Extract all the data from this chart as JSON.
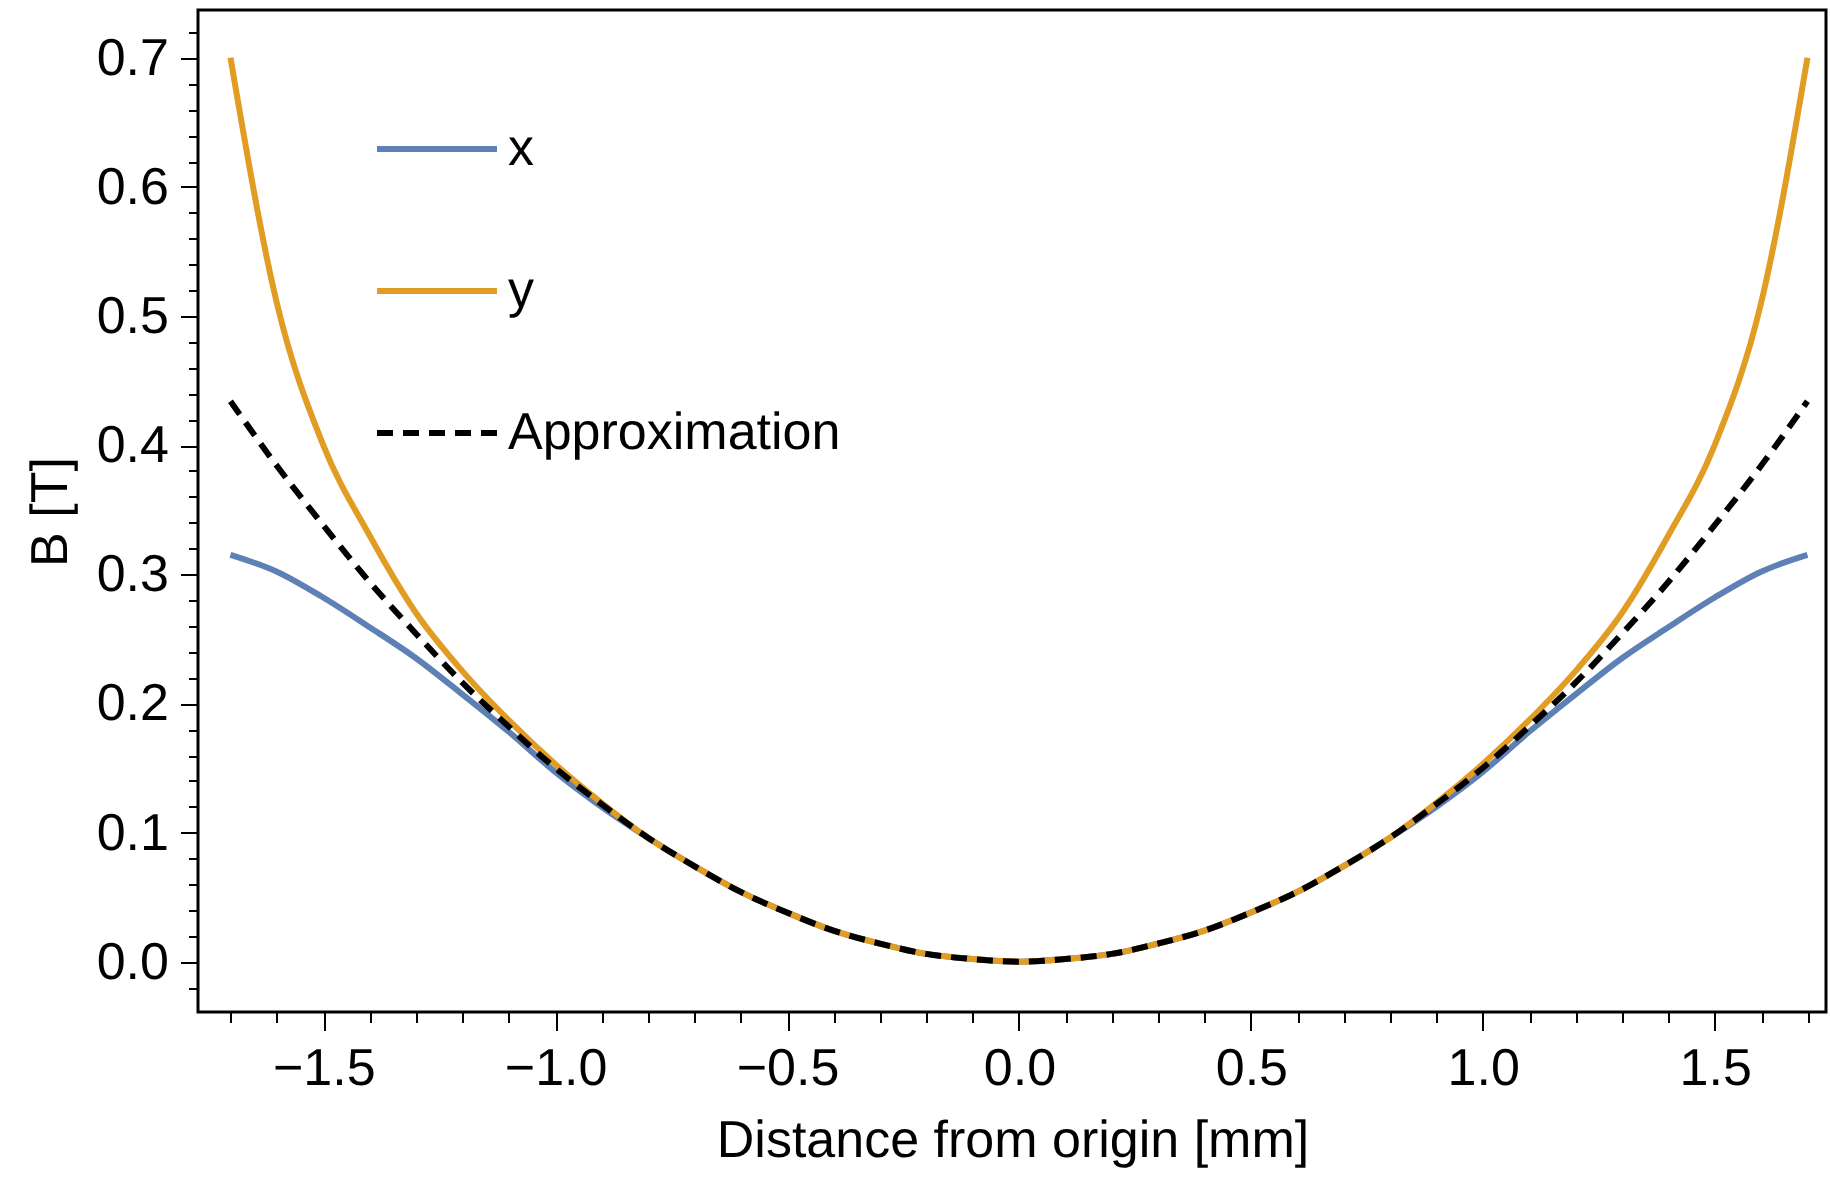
{
  "chart_data": {
    "type": "line",
    "xlabel": "Distance from origin [mm]",
    "ylabel": "B [T]",
    "legend": "top left",
    "grid": false,
    "x": [
      -1.7,
      -1.6,
      -1.5,
      -1.4,
      -1.3,
      -1.2,
      -1.1,
      -1.0,
      -0.9,
      -0.8,
      -0.7,
      -0.6,
      -0.5,
      -0.4,
      -0.3,
      -0.2,
      -0.1,
      0,
      0.1,
      0.2,
      0.3,
      0.4,
      0.5,
      0.6,
      0.7,
      0.8,
      0.9,
      1.0,
      1.1,
      1.2,
      1.3,
      1.4,
      1.5,
      1.6,
      1.7
    ],
    "series": [
      {
        "name": "x",
        "color": "#5e81b5",
        "line_style": "solid",
        "values": [
          0.315,
          0.302,
          0.282,
          0.259,
          0.235,
          0.207,
          0.178,
          0.147,
          0.12,
          0.096,
          0.074,
          0.054,
          0.038,
          0.024,
          0.014,
          0.006,
          0.002,
          0,
          0.002,
          0.006,
          0.014,
          0.024,
          0.038,
          0.054,
          0.074,
          0.096,
          0.12,
          0.147,
          0.178,
          0.207,
          0.235,
          0.259,
          0.282,
          0.302,
          0.315
        ]
      },
      {
        "name": "y",
        "color": "#e19c24",
        "line_style": "solid",
        "values": [
          0.7,
          0.51,
          0.4,
          0.33,
          0.27,
          0.225,
          0.187,
          0.153,
          0.123,
          0.096,
          0.074,
          0.054,
          0.038,
          0.024,
          0.014,
          0.006,
          0.002,
          0,
          0.002,
          0.006,
          0.014,
          0.024,
          0.038,
          0.054,
          0.074,
          0.096,
          0.123,
          0.153,
          0.187,
          0.225,
          0.27,
          0.33,
          0.4,
          0.51,
          0.7
        ]
      },
      {
        "name": "Approximation",
        "color": "#000000",
        "line_style": "dashed",
        "values": [
          0.434,
          0.384,
          0.338,
          0.294,
          0.254,
          0.216,
          0.182,
          0.15,
          0.122,
          0.096,
          0.074,
          0.054,
          0.038,
          0.024,
          0.014,
          0.006,
          0.002,
          0,
          0.002,
          0.006,
          0.014,
          0.024,
          0.038,
          0.054,
          0.074,
          0.096,
          0.122,
          0.15,
          0.182,
          0.216,
          0.254,
          0.294,
          0.338,
          0.384,
          0.434
        ]
      }
    ],
    "xlim": [
      -1.77,
      1.74
    ],
    "ylim": [
      -0.039,
      0.737
    ],
    "xticks": [
      {
        "value": -1.7,
        "label": null
      },
      {
        "value": -1.6,
        "label": null
      },
      {
        "value": -1.5,
        "label": "−1.5"
      },
      {
        "value": -1.4,
        "label": null
      },
      {
        "value": -1.3,
        "label": null
      },
      {
        "value": -1.2,
        "label": null
      },
      {
        "value": -1.1,
        "label": null
      },
      {
        "value": -1.0,
        "label": "−1.0"
      },
      {
        "value": -0.9,
        "label": null
      },
      {
        "value": -0.8,
        "label": null
      },
      {
        "value": -0.7,
        "label": null
      },
      {
        "value": -0.6,
        "label": null
      },
      {
        "value": -0.5,
        "label": "−0.5"
      },
      {
        "value": -0.4,
        "label": null
      },
      {
        "value": -0.3,
        "label": null
      },
      {
        "value": -0.2,
        "label": null
      },
      {
        "value": -0.1,
        "label": null
      },
      {
        "value": 0,
        "label": "0.0"
      },
      {
        "value": 0.1,
        "label": null
      },
      {
        "value": 0.2,
        "label": null
      },
      {
        "value": 0.3,
        "label": null
      },
      {
        "value": 0.4,
        "label": null
      },
      {
        "value": 0.5,
        "label": "0.5"
      },
      {
        "value": 0.6,
        "label": null
      },
      {
        "value": 0.7,
        "label": null
      },
      {
        "value": 0.8,
        "label": null
      },
      {
        "value": 0.9,
        "label": null
      },
      {
        "value": 1.0,
        "label": "1.0"
      },
      {
        "value": 1.1,
        "label": null
      },
      {
        "value": 1.2,
        "label": null
      },
      {
        "value": 1.3,
        "label": null
      },
      {
        "value": 1.4,
        "label": null
      },
      {
        "value": 1.5,
        "label": "1.5"
      },
      {
        "value": 1.6,
        "label": null
      },
      {
        "value": 1.7,
        "label": null
      }
    ],
    "yticks": [
      {
        "value": -0.02,
        "label": null
      },
      {
        "value": 0,
        "label": "0.0"
      },
      {
        "value": 0.02,
        "label": null
      },
      {
        "value": 0.04,
        "label": null
      },
      {
        "value": 0.06,
        "label": null
      },
      {
        "value": 0.08,
        "label": null
      },
      {
        "value": 0.1,
        "label": "0.1"
      },
      {
        "value": 0.12,
        "label": null
      },
      {
        "value": 0.14,
        "label": null
      },
      {
        "value": 0.16,
        "label": null
      },
      {
        "value": 0.18,
        "label": null
      },
      {
        "value": 0.2,
        "label": "0.2"
      },
      {
        "value": 0.22,
        "label": null
      },
      {
        "value": 0.24,
        "label": null
      },
      {
        "value": 0.26,
        "label": null
      },
      {
        "value": 0.28,
        "label": null
      },
      {
        "value": 0.3,
        "label": "0.3"
      },
      {
        "value": 0.32,
        "label": null
      },
      {
        "value": 0.34,
        "label": null
      },
      {
        "value": 0.36,
        "label": null
      },
      {
        "value": 0.38,
        "label": null
      },
      {
        "value": 0.4,
        "label": "0.4"
      },
      {
        "value": 0.42,
        "label": null
      },
      {
        "value": 0.44,
        "label": null
      },
      {
        "value": 0.46,
        "label": null
      },
      {
        "value": 0.48,
        "label": null
      },
      {
        "value": 0.5,
        "label": "0.5"
      },
      {
        "value": 0.52,
        "label": null
      },
      {
        "value": 0.54,
        "label": null
      },
      {
        "value": 0.56,
        "label": null
      },
      {
        "value": 0.58,
        "label": null
      },
      {
        "value": 0.6,
        "label": "0.6"
      },
      {
        "value": 0.62,
        "label": null
      },
      {
        "value": 0.64,
        "label": null
      },
      {
        "value": 0.66,
        "label": null
      },
      {
        "value": 0.68,
        "label": null
      },
      {
        "value": 0.7,
        "label": "0.7"
      },
      {
        "value": 0.72,
        "label": null
      }
    ]
  }
}
